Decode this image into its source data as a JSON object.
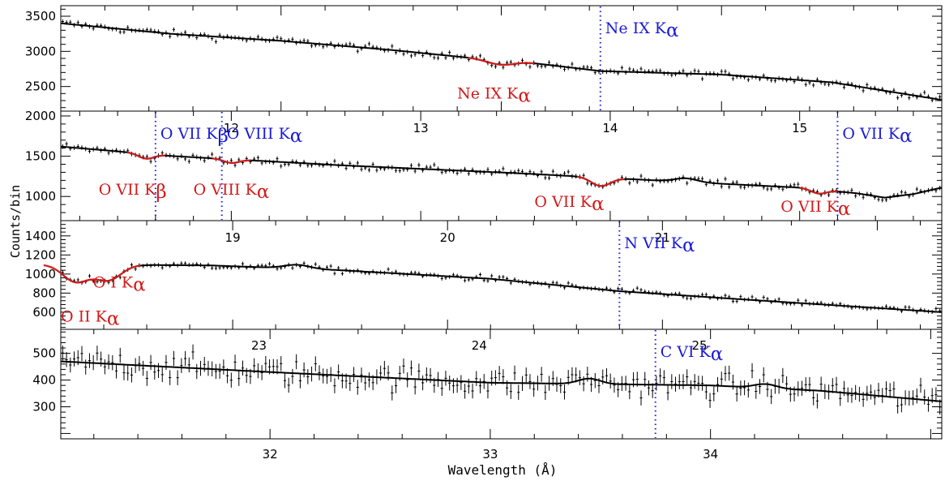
{
  "colors": {
    "axis": "#000000",
    "data": "#000000",
    "model": "#000000",
    "absorption": "#d21a1a",
    "marker": "#1a1ad6"
  },
  "chart_data": {
    "type": "scatter",
    "xlabel": "Wavelength (Å)",
    "ylabel": "Counts/bin",
    "panels": [
      {
        "xlim": [
          11.0,
          15.0
        ],
        "ylim": [
          2150,
          3650
        ],
        "xticks": [],
        "yticks": [
          2500,
          3000,
          3500
        ],
        "model": [
          [
            11.0,
            3400
          ],
          [
            11.5,
            3250
          ],
          [
            12.0,
            3150
          ],
          [
            12.5,
            3020
          ],
          [
            12.95,
            2880
          ],
          [
            13.1,
            2850
          ],
          [
            13.45,
            2720
          ],
          [
            14.0,
            2670
          ],
          [
            14.5,
            2560
          ],
          [
            15.0,
            2310
          ]
        ],
        "absorption": [
          {
            "center": 13.0,
            "width": 0.06,
            "depth": 60
          }
        ],
        "emission": [],
        "data_noise": 45,
        "markers": [
          {
            "x": 13.45,
            "label": "Ne IX K",
            "sub": "α"
          }
        ],
        "abs_labels": [
          {
            "x": 12.8,
            "y": 2330,
            "label": "Ne IX K",
            "sub": "α"
          }
        ]
      },
      {
        "xlim": [
          11.1,
          15.75
        ],
        "ylim": [
          700,
          2060
        ],
        "xticks": [
          12,
          13,
          14,
          15
        ],
        "yticks": [
          1000,
          1500,
          2000
        ],
        "model": [
          [
            11.1,
            1620
          ],
          [
            11.7,
            1500
          ],
          [
            12.6,
            1385
          ],
          [
            13.5,
            1290
          ],
          [
            14.4,
            1180
          ],
          [
            15.0,
            1110
          ],
          [
            15.3,
            1040
          ],
          [
            15.45,
            985
          ],
          [
            15.6,
            1030
          ],
          [
            15.75,
            1110
          ]
        ],
        "absorption": [
          {
            "center": 11.55,
            "width": 0.04,
            "depth": 60
          },
          {
            "center": 12.0,
            "width": 0.04,
            "depth": 45
          },
          {
            "center": 13.95,
            "width": 0.05,
            "depth": 105
          },
          {
            "center": 15.1,
            "width": 0.04,
            "depth": 50
          }
        ],
        "emission": [
          {
            "center": 14.4,
            "width": 0.06,
            "depth": 45
          }
        ],
        "data_noise": 40,
        "markers": [
          {
            "x": 11.6,
            "label": "O VII K",
            "sub": "β"
          },
          {
            "x": 11.95,
            "label": "O VIII K",
            "sub": "α"
          },
          {
            "x": 15.2,
            "label": "O VII K",
            "sub": "α"
          }
        ],
        "abs_labels": [
          {
            "x": 11.3,
            "y": 1020,
            "label": "O VII K",
            "sub": "β"
          },
          {
            "x": 11.8,
            "y": 1020,
            "label": "O VIII K",
            "sub": "α"
          },
          {
            "x": 13.6,
            "y": 870,
            "label": "O VII K",
            "sub": "α"
          },
          {
            "x": 14.9,
            "y": 810,
            "label": "O VII K",
            "sub": "α"
          }
        ]
      },
      {
        "xlim": [
          18.2,
          22.3
        ],
        "ylim": [
          420,
          1560
        ],
        "xticks": [
          19,
          20,
          21
        ],
        "yticks": [
          600,
          800,
          1000,
          1200,
          1400
        ],
        "model": [
          [
            18.2,
            1100
          ],
          [
            18.9,
            1090
          ],
          [
            19.5,
            1040
          ],
          [
            20.2,
            950
          ],
          [
            20.8,
            820
          ],
          [
            21.4,
            730
          ],
          [
            22.3,
            600
          ]
        ],
        "absorption": [
          {
            "center": 18.27,
            "width": 0.06,
            "depth": 180
          },
          {
            "center": 18.42,
            "width": 0.06,
            "depth": 160
          }
        ],
        "emission": [
          {
            "center": 19.3,
            "width": 0.06,
            "depth": 40
          }
        ],
        "data_noise": 30,
        "markers": [
          {
            "x": 20.8,
            "label": "N VII K",
            "sub": "α"
          }
        ],
        "abs_labels": [
          {
            "x": 18.35,
            "y": 860,
            "label": "O I K",
            "sub": "α"
          },
          {
            "x": 18.2,
            "y": 500,
            "label": "O II K",
            "sub": "α"
          }
        ]
      },
      {
        "xlim": [
          31.05,
          35.05
        ],
        "ylim": [
          180,
          590
        ],
        "xticks": [
          32,
          33,
          34
        ],
        "yticks": [
          300,
          400,
          500
        ],
        "model": [
          [
            31.05,
            470
          ],
          [
            32.0,
            430
          ],
          [
            33.0,
            390
          ],
          [
            33.5,
            385
          ],
          [
            34.0,
            380
          ],
          [
            34.5,
            360
          ],
          [
            35.05,
            320
          ]
        ],
        "absorption": [],
        "emission": [
          {
            "center": 33.45,
            "width": 0.05,
            "depth": 20
          },
          {
            "center": 34.25,
            "width": 0.05,
            "depth": 15
          }
        ],
        "data_noise": 40,
        "markers": [
          {
            "x": 33.75,
            "label": "C VI K",
            "sub": "α"
          }
        ],
        "abs_labels": [],
        "xtick_labels_bottom": true,
        "upper_labels": [
          {
            "x": 31.95,
            "label": "23"
          },
          {
            "x": 32.95,
            "label": "24"
          },
          {
            "x": 33.95,
            "label": "25"
          }
        ]
      }
    ]
  }
}
